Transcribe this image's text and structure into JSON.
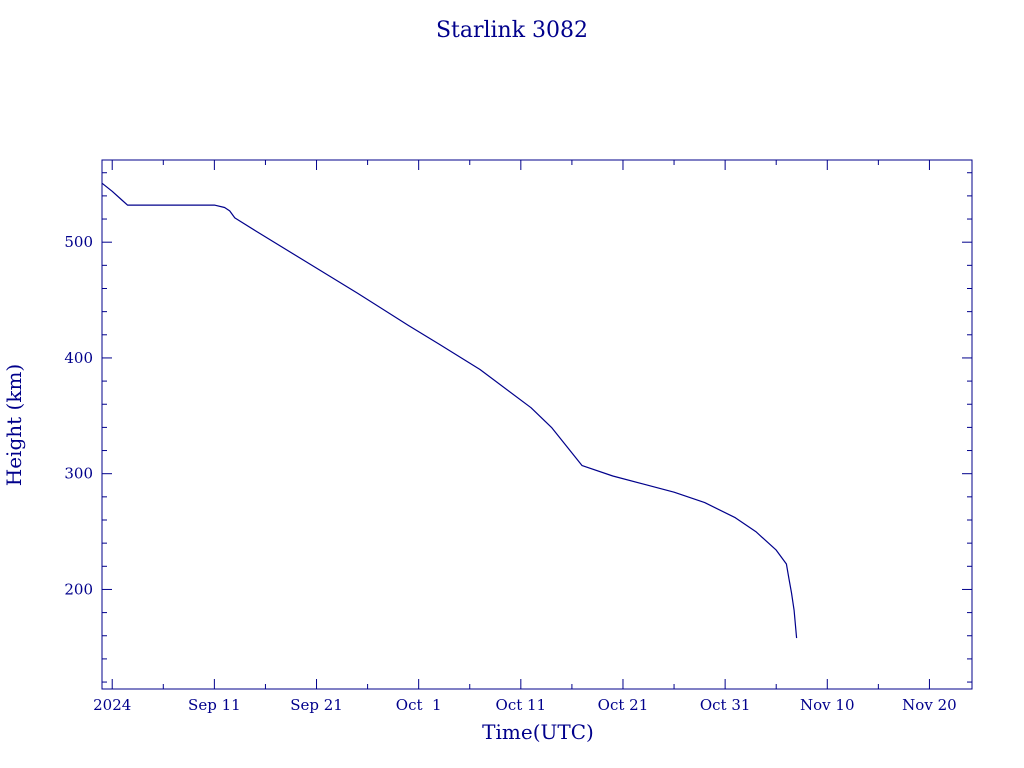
{
  "colors": {
    "ink": "#00008b",
    "background": "#ffffff"
  },
  "chart_data": {
    "type": "line",
    "title": "Starlink 3082",
    "xlabel": "Time(UTC)",
    "ylabel": "Height (km)",
    "x_format": "date",
    "xlim": [
      "2024-08-31T00:00",
      "2024-11-24T04:00"
    ],
    "ylim": [
      114,
      571
    ],
    "x_ticks": [
      {
        "x": "2024-09-01T00:00",
        "label": "2024"
      },
      {
        "x": "2024-09-11T00:00",
        "label": "Sep 11"
      },
      {
        "x": "2024-09-21T00:00",
        "label": "Sep 21"
      },
      {
        "x": "2024-10-01T00:00",
        "label": "Oct  1"
      },
      {
        "x": "2024-10-11T00:00",
        "label": "Oct 11"
      },
      {
        "x": "2024-10-21T00:00",
        "label": "Oct 21"
      },
      {
        "x": "2024-10-31T00:00",
        "label": "Oct 31"
      },
      {
        "x": "2024-11-10T00:00",
        "label": "Nov 10"
      },
      {
        "x": "2024-11-20T00:00",
        "label": "Nov 20"
      }
    ],
    "x_minor_ticks": [
      "2024-09-06T00:00",
      "2024-09-16T00:00",
      "2024-09-26T00:00",
      "2024-10-06T00:00",
      "2024-10-16T00:00",
      "2024-10-26T00:00",
      "2024-11-05T00:00",
      "2024-11-15T00:00"
    ],
    "y_ticks": [
      {
        "y": 200,
        "label": "200"
      },
      {
        "y": 300,
        "label": "300"
      },
      {
        "y": 400,
        "label": "400"
      },
      {
        "y": 500,
        "label": "500"
      }
    ],
    "y_minor_step": 20,
    "grid": false,
    "legend": "none",
    "series": [
      {
        "x": [
          "2024-08-31T00:00",
          "2024-09-01T00:00",
          "2024-09-02T00:00",
          "2024-09-02T12:00",
          "2024-09-05T00:00",
          "2024-09-08T00:00",
          "2024-09-11T00:00",
          "2024-09-12T00:00",
          "2024-09-12T12:00",
          "2024-09-13T00:00",
          "2024-09-15T00:00",
          "2024-09-20T00:00",
          "2024-09-25T00:00",
          "2024-09-30T00:00",
          "2024-10-03T00:00",
          "2024-10-07T00:00",
          "2024-10-12T00:00",
          "2024-10-14T00:00",
          "2024-10-17T00:00",
          "2024-10-20T00:00",
          "2024-10-23T00:00",
          "2024-10-26T00:00",
          "2024-10-29T00:00",
          "2024-11-01T00:00",
          "2024-11-03T00:00",
          "2024-11-05T00:00",
          "2024-11-06T00:00",
          "2024-11-06T06:00",
          "2024-11-06T12:00",
          "2024-11-06T18:00",
          "2024-11-07T00:00"
        ],
        "y": [
          551,
          544,
          536,
          532,
          532,
          532,
          532,
          530,
          527,
          521,
          510,
          483,
          456,
          428,
          412,
          390,
          357,
          340,
          307,
          298,
          291,
          284,
          275,
          262,
          250,
          234,
          222,
          209,
          197,
          182,
          158
        ]
      }
    ]
  }
}
